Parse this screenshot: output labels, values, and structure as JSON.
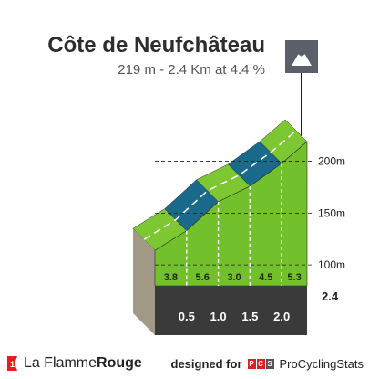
{
  "header": {
    "title": "Côte de Neufchâteau",
    "subtitle": "219 m - 2.4 Km at 4.4 %",
    "icon": "mountain-icon"
  },
  "footer": {
    "brand_left": "La Flamme",
    "brand_left_bold": "Rouge",
    "designed_by": "designed for",
    "pcs_letters": [
      "P",
      "C",
      "S"
    ],
    "brand_right": "ProCyclingStats"
  },
  "colors": {
    "road_green": "#7dc832",
    "road_blue": "#1a6a8c",
    "side_green": "#72c02c",
    "base": "#3a3a3a",
    "start_wall": "#a29a86",
    "pole": "#1e1e1e",
    "pcs_red": "#e02020"
  },
  "chart_data": {
    "type": "area",
    "title": "Côte de Neufchâteau",
    "distance_km": [
      0,
      0.5,
      1.0,
      1.5,
      2.0,
      2.4
    ],
    "altitude_m": [
      114,
      133,
      161,
      176,
      198,
      219
    ],
    "segment_gradients": [
      "3.8",
      "5.6",
      "3.0",
      "4.5",
      "5.3"
    ],
    "x_ticks": [
      "0.5",
      "1.0",
      "1.5",
      "2.0"
    ],
    "x_end_label": "2.4",
    "y_ticks": [
      {
        "value": 100,
        "label": "100m"
      },
      {
        "value": 150,
        "label": "150m"
      },
      {
        "value": 200,
        "label": "200m"
      }
    ],
    "ylim": [
      86,
      219
    ],
    "xlim": [
      0,
      2.4
    ]
  }
}
